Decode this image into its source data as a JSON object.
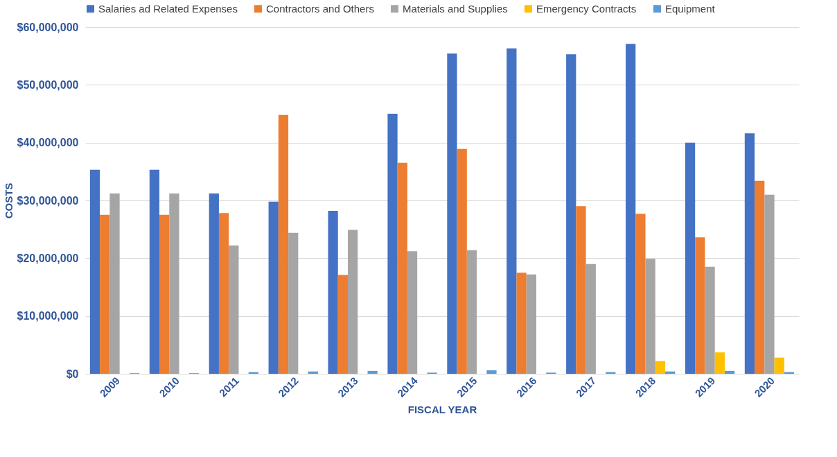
{
  "chart_data": {
    "type": "bar",
    "xlabel": "FISCAL YEAR",
    "ylabel": "COSTS",
    "categories": [
      "2009",
      "2010",
      "2011",
      "2012",
      "2013",
      "2014",
      "2015",
      "2016",
      "2017",
      "2018",
      "2019",
      "2020"
    ],
    "series": [
      {
        "name": "Salaries ad Related Expenses",
        "color": "#4472c4",
        "values": [
          35300000,
          35300000,
          31200000,
          29800000,
          28200000,
          45000000,
          55400000,
          56300000,
          55300000,
          57100000,
          40000000,
          41600000
        ]
      },
      {
        "name": "Contractors and Others",
        "color": "#ed7d31",
        "values": [
          27500000,
          27500000,
          27800000,
          44800000,
          17100000,
          36500000,
          38900000,
          17500000,
          29000000,
          27700000,
          23600000,
          33400000
        ]
      },
      {
        "name": "Materials and Supplies",
        "color": "#a5a5a5",
        "values": [
          31200000,
          31200000,
          22200000,
          24400000,
          24900000,
          21200000,
          21400000,
          17200000,
          19000000,
          19900000,
          18500000,
          31000000
        ]
      },
      {
        "name": "Emergency Contracts",
        "color": "#ffc000",
        "values": [
          0,
          0,
          0,
          0,
          0,
          0,
          0,
          0,
          0,
          2200000,
          3700000,
          2800000
        ]
      },
      {
        "name": "Equipment",
        "color": "#5b9bd5",
        "values": [
          100000,
          100000,
          300000,
          400000,
          500000,
          200000,
          600000,
          200000,
          300000,
          400000,
          500000,
          300000
        ]
      }
    ],
    "ylim": [
      0,
      60000000
    ],
    "yticks": [
      {
        "value": 0,
        "label": "$0"
      },
      {
        "value": 10000000,
        "label": "$10,000,000"
      },
      {
        "value": 20000000,
        "label": "$20,000,000"
      },
      {
        "value": 30000000,
        "label": "$30,000,000"
      },
      {
        "value": 40000000,
        "label": "$40,000,000"
      },
      {
        "value": 50000000,
        "label": "$50,000,000"
      },
      {
        "value": 60000000,
        "label": "$60,000,000"
      }
    ],
    "grid": "y",
    "legend": "top"
  }
}
